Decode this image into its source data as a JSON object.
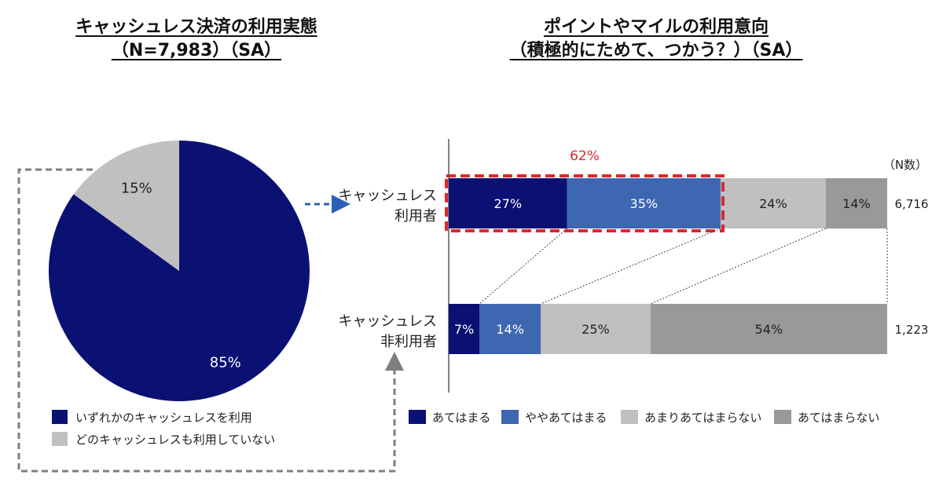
{
  "pie_title": {
    "line1": "キャッシュレス決済の利用実態",
    "line2": "（N=7,983）（SA）"
  },
  "bar_title": {
    "line1": "ポイントやマイルの利用意向",
    "line2": "（積極的にためて、つかう？）（SA）"
  },
  "colors": {
    "navy": "#0a1172",
    "blue": "#3d67b1",
    "light_gray": "#c0c0c0",
    "gray": "#999999",
    "highlight": "#d9282f",
    "dash": "#7f7f7f"
  },
  "chart_data": [
    {
      "type": "pie",
      "title": "キャッシュレス決済の利用実態",
      "slices": [
        {
          "label": "いずれかのキャッシュレスを利用",
          "value": 85,
          "display": "85%",
          "color": "#0a1172"
        },
        {
          "label": "どのキャッシュレスも利用していない",
          "value": 15,
          "display": "15%",
          "color": "#c0c0c0"
        }
      ]
    },
    {
      "type": "bar",
      "stacked": true,
      "orientation": "horizontal",
      "percent_stacked": true,
      "title": "ポイントやマイルの利用意向",
      "n_header": "（N数）",
      "categories": [
        {
          "line1": "キャッシュレス",
          "line2": "利用者",
          "n": "6,716"
        },
        {
          "line1": "キャッシュレス",
          "line2": "非利用者",
          "n": "1,223"
        }
      ],
      "series": [
        {
          "name": "あてはまる",
          "values": [
            27,
            7
          ],
          "color": "#0a1172"
        },
        {
          "name": "ややあてはまる",
          "values": [
            35,
            14
          ],
          "color": "#3d67b1"
        },
        {
          "name": "あまりあてはまらない",
          "values": [
            24,
            25
          ],
          "color": "#c0c0c0"
        },
        {
          "name": "あてはまらない",
          "values": [
            14,
            54
          ],
          "color": "#999999"
        }
      ],
      "annotation": "62%"
    }
  ]
}
